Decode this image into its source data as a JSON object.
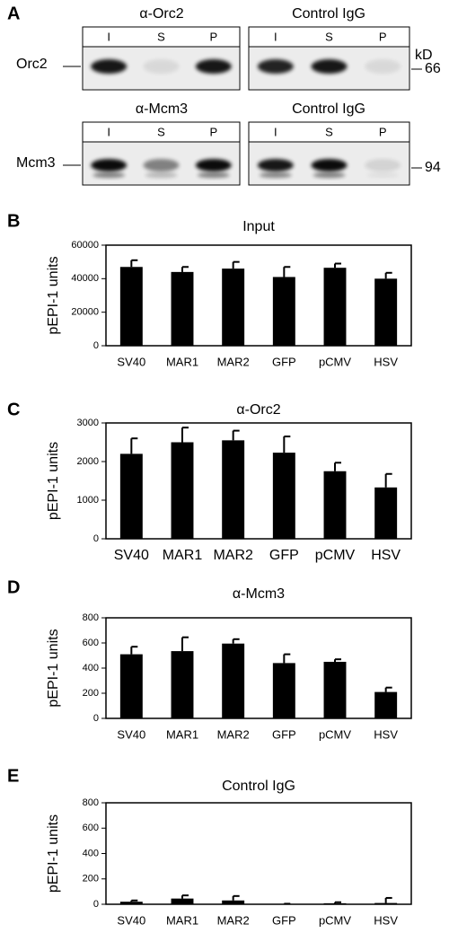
{
  "figure_a": {
    "letter": "A",
    "unit": "kD",
    "blots": [
      {
        "antibody_left": "α-Orc2",
        "antibody_right": "Control IgG",
        "lanes_left": [
          "I",
          "S",
          "P"
        ],
        "lanes_right": [
          "I",
          "S",
          "P"
        ],
        "protein": "Orc2",
        "marker": "66"
      },
      {
        "antibody_left": "α-Mcm3",
        "antibody_right": "Control IgG",
        "lanes_left": [
          "I",
          "S",
          "P"
        ],
        "lanes_right": [
          "I",
          "S",
          "P"
        ],
        "protein": "Mcm3",
        "marker": "94"
      }
    ]
  },
  "chart_data": [
    {
      "letter": "B",
      "type": "bar",
      "title": "Input",
      "ylabel": "pEPI-1 units",
      "color": "#000000",
      "categories": [
        "SV40",
        "MAR1",
        "MAR2",
        "GFP",
        "pCMV",
        "HSV"
      ],
      "values": [
        47000,
        44000,
        46000,
        41000,
        46500,
        40000
      ],
      "errors": [
        4000,
        3000,
        4000,
        6000,
        2500,
        3500
      ],
      "ylim": [
        0,
        60000
      ],
      "yticks": [
        0,
        20000,
        40000,
        60000
      ]
    },
    {
      "letter": "C",
      "type": "bar",
      "title": "α-Orc2",
      "ylabel": "pEPI-1 units",
      "color": "#000000",
      "categories": [
        "SV40",
        "MAR1",
        "MAR2",
        "GFP",
        "pCMV",
        "HSV"
      ],
      "values": [
        2200,
        2500,
        2550,
        2230,
        1750,
        1330
      ],
      "errors": [
        400,
        380,
        250,
        420,
        220,
        350
      ],
      "ylim": [
        0,
        3000
      ],
      "yticks": [
        0,
        1000,
        2000,
        3000
      ]
    },
    {
      "letter": "D",
      "type": "bar",
      "title": "α-Mcm3",
      "ylabel": "pEPI-1 units",
      "color": "#000000",
      "categories": [
        "SV40",
        "MAR1",
        "MAR2",
        "GFP",
        "pCMV",
        "HSV"
      ],
      "values": [
        510,
        535,
        595,
        440,
        450,
        210
      ],
      "errors": [
        60,
        110,
        35,
        70,
        20,
        35
      ],
      "ylim": [
        0,
        800
      ],
      "yticks": [
        0,
        200,
        400,
        600,
        800
      ]
    },
    {
      "letter": "E",
      "type": "bar",
      "title": "Control IgG",
      "ylabel": "pEPI-1 units",
      "color": "#000000",
      "categories": [
        "SV40",
        "MAR1",
        "MAR2",
        "GFP",
        "pCMV",
        "HSV"
      ],
      "values": [
        20,
        45,
        30,
        2,
        8,
        10
      ],
      "errors": [
        10,
        25,
        35,
        2,
        8,
        40
      ],
      "ylim": [
        0,
        800
      ],
      "yticks": [
        0,
        200,
        400,
        600,
        800
      ]
    }
  ]
}
